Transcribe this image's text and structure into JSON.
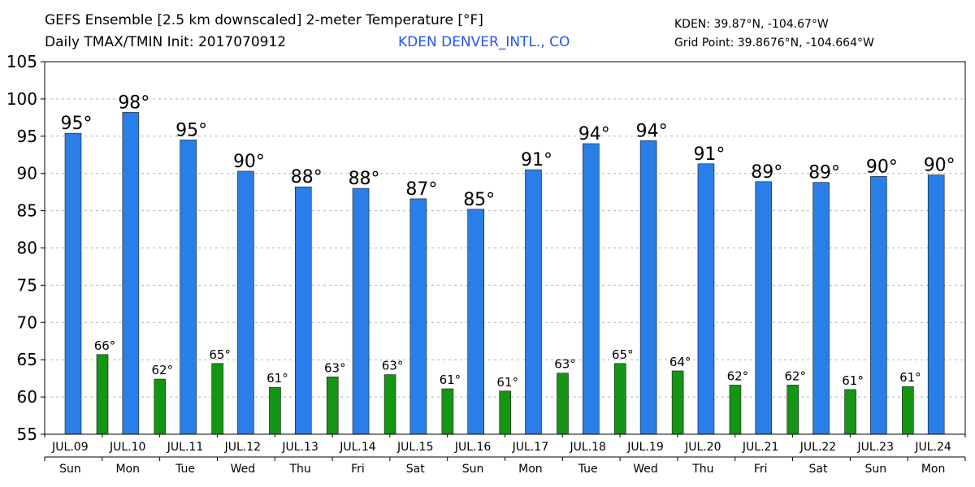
{
  "header": {
    "title_line1": "GEFS Ensemble [2.5 km downscaled] 2-meter Temperature [°F]",
    "title_line2": "Daily TMAX/TMIN Init: 2017070912",
    "station": "KDEN DENVER_INTL., CO",
    "station_coord": "KDEN: 39.87°N, -104.67°W",
    "grid_coord": "Grid Point: 39.8676°N, -104.664°W"
  },
  "colors": {
    "tmax": "#2a7ee8",
    "tmin": "#149614",
    "station": "#2255ee"
  },
  "chart_data": {
    "type": "bar",
    "categories": [
      "JUL.09",
      "JUL.10",
      "JUL.11",
      "JUL.12",
      "JUL.13",
      "JUL.14",
      "JUL.15",
      "JUL.16",
      "JUL.17",
      "JUL.18",
      "JUL.19",
      "JUL.20",
      "JUL.21",
      "JUL.22",
      "JUL.23",
      "JUL.24"
    ],
    "weekdays": [
      "Sun",
      "Mon",
      "Tue",
      "Wed",
      "Thu",
      "Fri",
      "Sat",
      "Sun",
      "Mon",
      "Tue",
      "Wed",
      "Thu",
      "Fri",
      "Sat",
      "Sun",
      "Mon"
    ],
    "series": [
      {
        "values": [
          95.4,
          98.2,
          94.5,
          90.3,
          88.2,
          88.0,
          86.6,
          85.2,
          90.5,
          94.0,
          94.4,
          91.3,
          88.9,
          88.8,
          89.6,
          89.8
        ],
        "labels": [
          "95°",
          "98°",
          "95°",
          "90°",
          "88°",
          "88°",
          "87°",
          "85°",
          "91°",
          "94°",
          "94°",
          "91°",
          "89°",
          "89°",
          "90°",
          "90°"
        ]
      },
      {
        "values": [
          65.7,
          62.4,
          64.5,
          61.3,
          62.7,
          63.0,
          61.1,
          60.8,
          63.2,
          64.5,
          63.5,
          61.6,
          61.6,
          61.0,
          61.4,
          null
        ],
        "labels": [
          "66°",
          "62°",
          "65°",
          "61°",
          "63°",
          "63°",
          "61°",
          "61°",
          "63°",
          "65°",
          "64°",
          "62°",
          "62°",
          "61°",
          "61°",
          ""
        ]
      }
    ],
    "ylim": [
      55,
      105
    ],
    "yticks": [
      55,
      60,
      65,
      70,
      75,
      80,
      85,
      90,
      95,
      100,
      105
    ],
    "grid": true
  }
}
